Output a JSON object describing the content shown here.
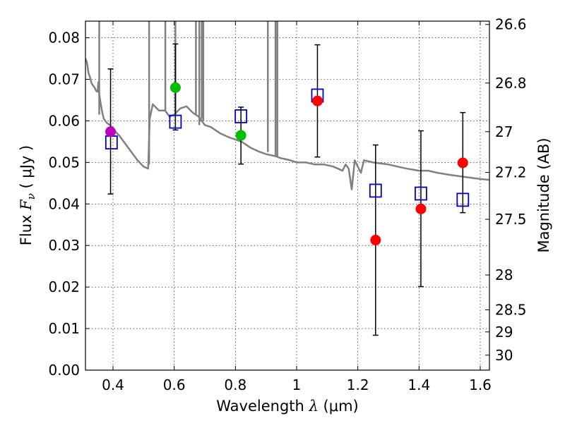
{
  "chart_data": {
    "type": "scatter",
    "xlabel": "Wavelength",
    "xlabel_symbol": "λ",
    "xlabel_unit": "(μm)",
    "ylabel": "Flux",
    "ylabel_symbol": "F",
    "ylabel_subscript": "ν",
    "ylabel_unit": "( μJy )",
    "y2label": "Magnitude (AB)",
    "xlim": [
      0.31,
      1.63
    ],
    "ylim": [
      0.0,
      0.084
    ],
    "grid": true,
    "x_ticks": [
      {
        "value": 0.4,
        "label": "0.4"
      },
      {
        "value": 0.6,
        "label": "0.6"
      },
      {
        "value": 0.8,
        "label": "0.8"
      },
      {
        "value": 1.0,
        "label": "1"
      },
      {
        "value": 1.2,
        "label": "1.2"
      },
      {
        "value": 1.4,
        "label": "1.4"
      },
      {
        "value": 1.6,
        "label": "1.6"
      }
    ],
    "y_ticks": [
      {
        "value": 0.0,
        "label": "0.00"
      },
      {
        "value": 0.01,
        "label": "0.01"
      },
      {
        "value": 0.02,
        "label": "0.02"
      },
      {
        "value": 0.03,
        "label": "0.03"
      },
      {
        "value": 0.04,
        "label": "0.04"
      },
      {
        "value": 0.05,
        "label": "0.05"
      },
      {
        "value": 0.06,
        "label": "0.06"
      },
      {
        "value": 0.07,
        "label": "0.07"
      },
      {
        "value": 0.08,
        "label": "0.08"
      }
    ],
    "mag_ticks": [
      {
        "flux": 0.0832,
        "label": "26.6"
      },
      {
        "flux": 0.0691,
        "label": "26.8"
      },
      {
        "flux": 0.0574,
        "label": "27"
      },
      {
        "flux": 0.0476,
        "label": "27.2"
      },
      {
        "flux": 0.0363,
        "label": "27.5"
      },
      {
        "flux": 0.0229,
        "label": "28"
      },
      {
        "flux": 0.0145,
        "label": "28.5"
      },
      {
        "flux": 0.0092,
        "label": "29"
      },
      {
        "flux": 0.0036,
        "label": "30"
      }
    ],
    "model_spectrum": {
      "name": "model SED",
      "color": "#808080",
      "points": [
        [
          0.31,
          0.075
        ],
        [
          0.315,
          0.074
        ],
        [
          0.32,
          0.0715
        ],
        [
          0.325,
          0.0705
        ],
        [
          0.33,
          0.069
        ],
        [
          0.335,
          0.0685
        ],
        [
          0.34,
          0.068
        ],
        [
          0.345,
          0.0672
        ],
        [
          0.35,
          0.067
        ],
        [
          0.352,
          0.0693
        ],
        [
          0.355,
          0.0665
        ],
        [
          0.36,
          0.064
        ],
        [
          0.365,
          0.062
        ],
        [
          0.37,
          0.0605
        ],
        [
          0.38,
          0.0595
        ],
        [
          0.39,
          0.059
        ],
        [
          0.4,
          0.058
        ],
        [
          0.42,
          0.0565
        ],
        [
          0.44,
          0.0545
        ],
        [
          0.46,
          0.0525
        ],
        [
          0.48,
          0.0505
        ],
        [
          0.5,
          0.049
        ],
        [
          0.515,
          0.0485
        ],
        [
          0.52,
          0.0605
        ],
        [
          0.53,
          0.064
        ],
        [
          0.55,
          0.0625
        ],
        [
          0.57,
          0.0625
        ],
        [
          0.585,
          0.061
        ],
        [
          0.6,
          0.0615
        ],
        [
          0.62,
          0.063
        ],
        [
          0.64,
          0.0635
        ],
        [
          0.66,
          0.062
        ],
        [
          0.68,
          0.061
        ],
        [
          0.7,
          0.059
        ],
        [
          0.72,
          0.0585
        ],
        [
          0.75,
          0.057
        ],
        [
          0.78,
          0.056
        ],
        [
          0.8,
          0.0555
        ],
        [
          0.82,
          0.055
        ],
        [
          0.85,
          0.0535
        ],
        [
          0.88,
          0.0525
        ],
        [
          0.9,
          0.052
        ],
        [
          0.93,
          0.0515
        ],
        [
          0.95,
          0.051
        ],
        [
          0.98,
          0.0505
        ],
        [
          1.0,
          0.05
        ],
        [
          1.03,
          0.05
        ],
        [
          1.06,
          0.0495
        ],
        [
          1.09,
          0.0495
        ],
        [
          1.12,
          0.049
        ],
        [
          1.15,
          0.048
        ],
        [
          1.16,
          0.0495
        ],
        [
          1.17,
          0.0485
        ],
        [
          1.18,
          0.0435
        ],
        [
          1.19,
          0.0505
        ],
        [
          1.21,
          0.0475
        ],
        [
          1.22,
          0.0505
        ],
        [
          1.25,
          0.05
        ],
        [
          1.3,
          0.0495
        ],
        [
          1.33,
          0.049
        ],
        [
          1.36,
          0.0485
        ],
        [
          1.4,
          0.048
        ],
        [
          1.43,
          0.048
        ],
        [
          1.46,
          0.0475
        ],
        [
          1.5,
          0.047
        ],
        [
          1.55,
          0.0465
        ],
        [
          1.6,
          0.046
        ],
        [
          1.63,
          0.0458
        ]
      ],
      "spikes": [
        {
          "x": 0.355,
          "bottom": 0.0615,
          "top": 0.084
        },
        {
          "x": 0.518,
          "bottom": 0.0495,
          "top": 0.084
        },
        {
          "x": 0.571,
          "bottom": 0.0625,
          "top": 0.084
        },
        {
          "x": 0.604,
          "bottom": 0.0615,
          "top": 0.084
        },
        {
          "x": 0.671,
          "bottom": 0.0615,
          "top": 0.084
        },
        {
          "x": 0.682,
          "bottom": 0.059,
          "top": 0.084
        },
        {
          "x": 0.69,
          "bottom": 0.0605,
          "top": 0.084
        },
        {
          "x": 0.695,
          "bottom": 0.06,
          "top": 0.084
        },
        {
          "x": 0.906,
          "bottom": 0.0525,
          "top": 0.084
        },
        {
          "x": 0.931,
          "bottom": 0.0515,
          "top": 0.084
        },
        {
          "x": 0.937,
          "bottom": 0.0515,
          "top": 0.084
        }
      ]
    },
    "model_points": {
      "name": "model photometry",
      "color": "#0000cc",
      "points": [
        {
          "x": 0.395,
          "y": 0.0548
        },
        {
          "x": 0.604,
          "y": 0.0598
        },
        {
          "x": 0.818,
          "y": 0.0611
        },
        {
          "x": 1.068,
          "y": 0.0661
        },
        {
          "x": 1.258,
          "y": 0.0432
        },
        {
          "x": 1.406,
          "y": 0.0425
        },
        {
          "x": 1.543,
          "y": 0.041
        }
      ]
    },
    "observed": {
      "name": "observed photometry",
      "points": [
        {
          "x": 0.392,
          "y": 0.0574,
          "err_low": 0.0424,
          "err_high": 0.0725,
          "color": "#bf00bf"
        },
        {
          "x": 0.604,
          "y": 0.068,
          "err_low": 0.0578,
          "err_high": 0.0785,
          "color": "#00bf00"
        },
        {
          "x": 0.818,
          "y": 0.0565,
          "err_low": 0.0496,
          "err_high": 0.0633,
          "color": "#00bf00"
        },
        {
          "x": 1.068,
          "y": 0.0648,
          "err_low": 0.0513,
          "err_high": 0.0783,
          "color": "#ff0000"
        },
        {
          "x": 1.258,
          "y": 0.0313,
          "err_low": 0.0084,
          "err_high": 0.0542,
          "color": "#ff0000"
        },
        {
          "x": 1.406,
          "y": 0.0388,
          "err_low": 0.0201,
          "err_high": 0.0576,
          "color": "#ff0000"
        },
        {
          "x": 1.543,
          "y": 0.0499,
          "err_low": 0.0379,
          "err_high": 0.062,
          "color": "#ff0000"
        }
      ]
    }
  }
}
